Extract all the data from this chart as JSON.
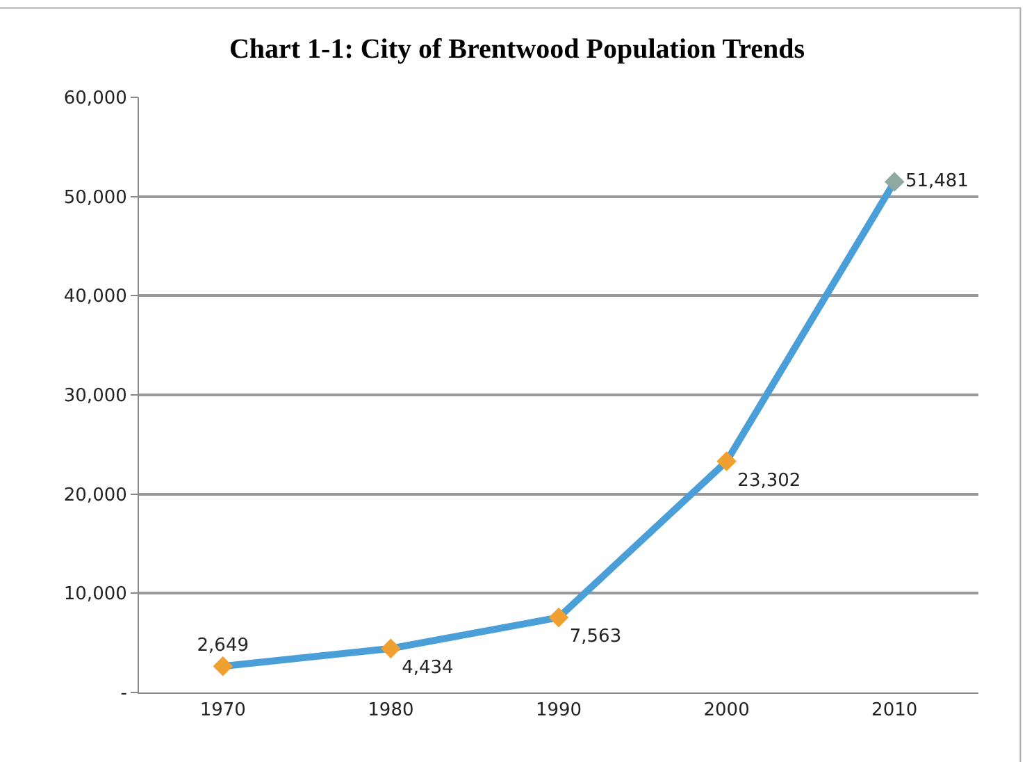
{
  "chart_data": {
    "type": "line",
    "title": "Chart 1-1: City of Brentwood Population Trends",
    "categories": [
      "1970",
      "1980",
      "1990",
      "2000",
      "2010"
    ],
    "series": [
      {
        "color": "#4a9fd8",
        "colors": [
          "#f0a030",
          "#f0a030",
          "#f0a030",
          "#f0a030",
          "#8fa8a0"
        ],
        "values": [
          2649,
          4434,
          7563,
          23302,
          51481
        ],
        "value_labels": [
          "2,649",
          "4,434",
          "7,563",
          "23,302",
          "51,481"
        ]
      }
    ],
    "ylim": [
      0,
      60000
    ],
    "yticks": [
      {
        "value": 0,
        "label": "-"
      },
      {
        "value": 10000,
        "label": "10,000"
      },
      {
        "value": 20000,
        "label": "20,000"
      },
      {
        "value": 30000,
        "label": "30,000"
      },
      {
        "value": 40000,
        "label": "40,000"
      },
      {
        "value": 50000,
        "label": "50,000"
      },
      {
        "value": 60000,
        "label": "60,000"
      }
    ],
    "grid": "y",
    "legend": false,
    "marker": "diamond",
    "line_style": "solid"
  }
}
